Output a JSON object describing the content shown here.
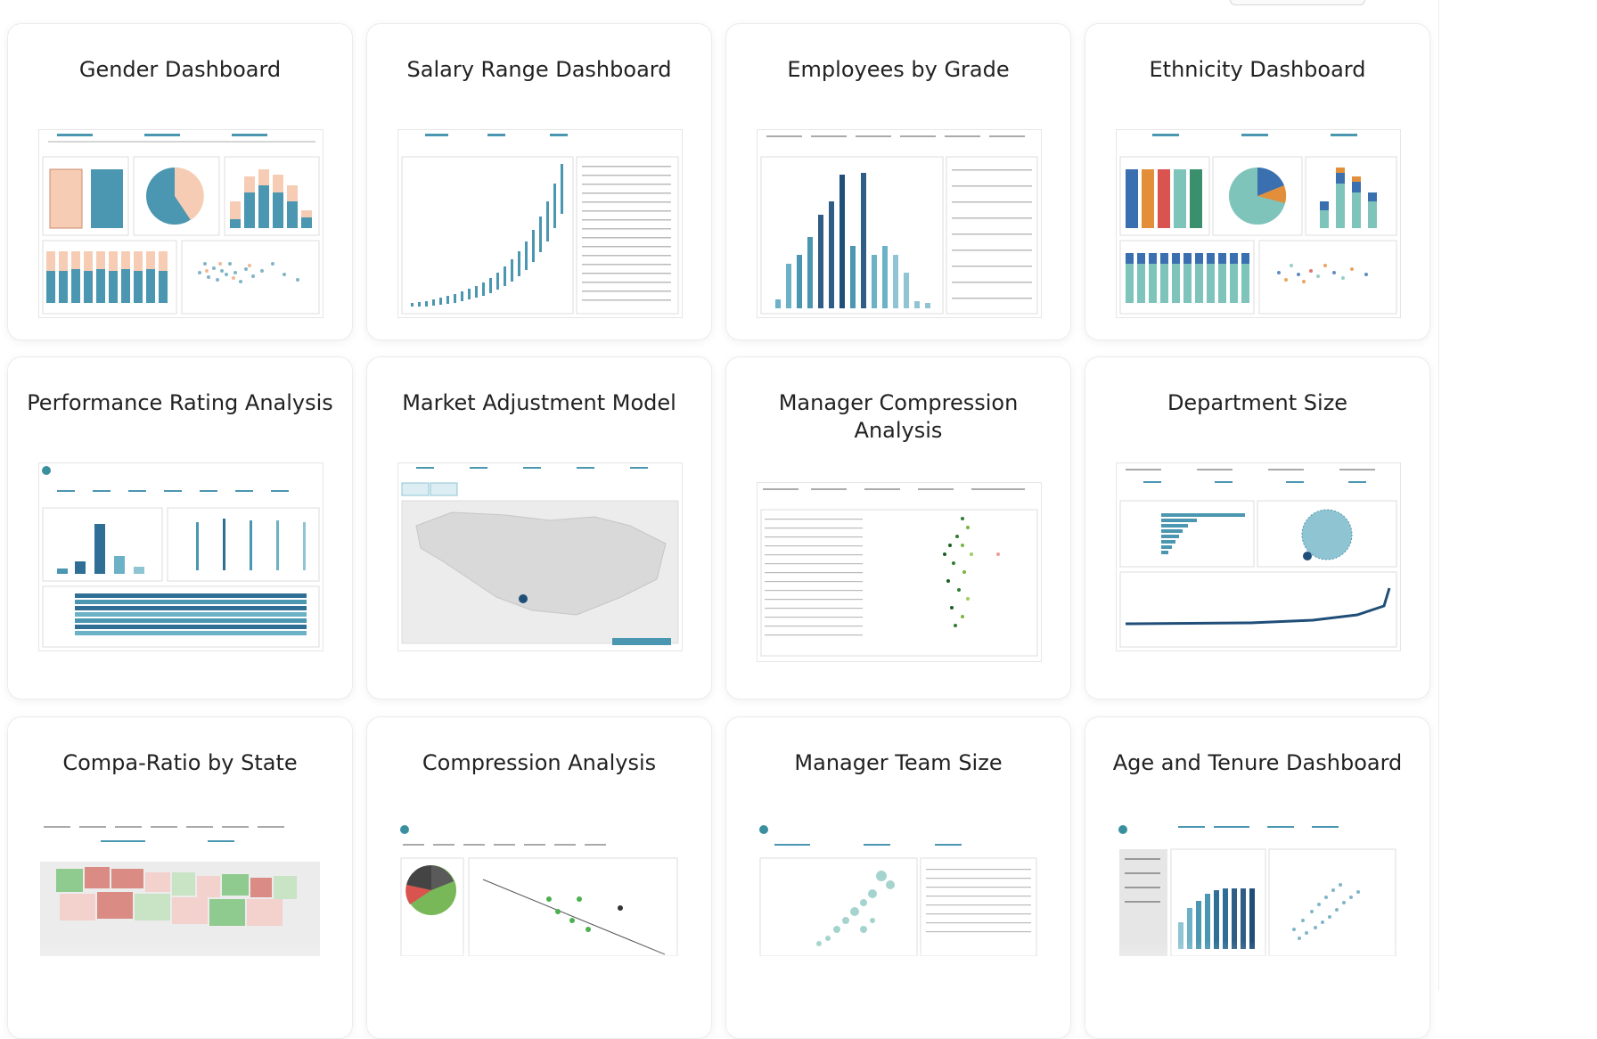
{
  "cards": [
    {
      "title": "Gender Dashboard",
      "icon": "gender-dashboard-thumbnail"
    },
    {
      "title": "Salary Range Dashboard",
      "icon": "salary-range-thumbnail"
    },
    {
      "title": "Employees by Grade",
      "icon": "employees-by-grade-thumbnail"
    },
    {
      "title": "Ethnicity Dashboard",
      "icon": "ethnicity-dashboard-thumbnail"
    },
    {
      "title": "Performance Rating Analysis",
      "icon": "performance-rating-thumbnail"
    },
    {
      "title": "Market Adjustment Model",
      "icon": "market-adjustment-map-thumbnail"
    },
    {
      "title": "Manager Compression Analysis",
      "icon": "manager-compression-thumbnail"
    },
    {
      "title": "Department Size",
      "icon": "department-size-thumbnail"
    },
    {
      "title": "Compa-Ratio by State",
      "icon": "compa-ratio-map-thumbnail"
    },
    {
      "title": "Compression Analysis",
      "icon": "compression-analysis-thumbnail"
    },
    {
      "title": "Manager Team Size",
      "icon": "manager-team-size-thumbnail"
    },
    {
      "title": "Age and Tenure Dashboard",
      "icon": "age-tenure-thumbnail"
    }
  ],
  "colors": {
    "teal": "#4b96b0",
    "dark_blue": "#2f5d86",
    "peach": "#f6cdb4",
    "orange": "#e38f3a",
    "red": "#d9534f",
    "green": "#3c8f3c",
    "map_grey": "#d9d9d9"
  }
}
